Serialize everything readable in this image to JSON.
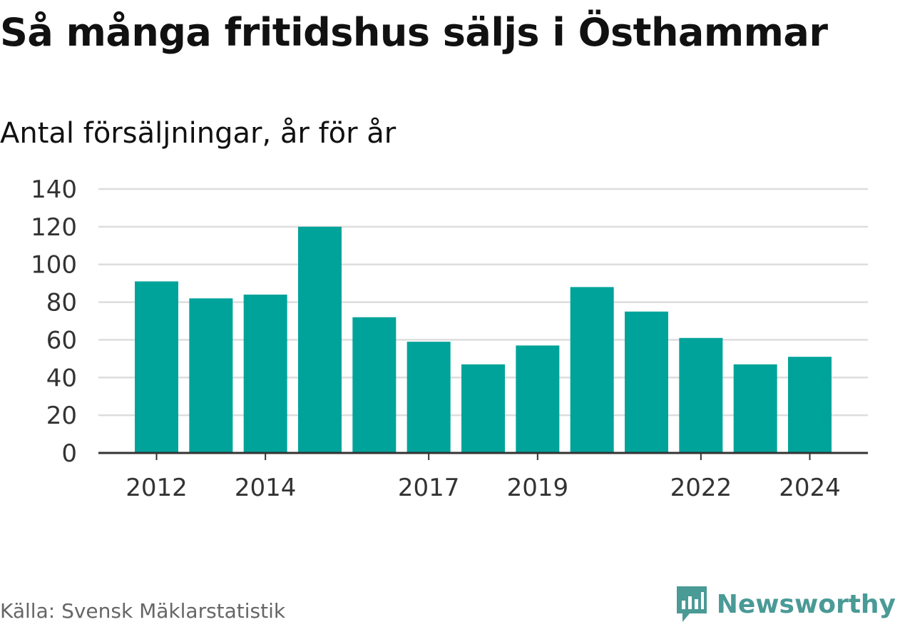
{
  "title": "Så många fritidshus säljs i Östhammar",
  "subtitle": "Antal försäljningar, år för år",
  "source": "Källa: Svensk Mäklarstatistik",
  "brand": {
    "name": "Newsworthy",
    "icon": "newsworthy-logo-icon",
    "color": "#4a9a96"
  },
  "colors": {
    "bar": "#00a39a",
    "grid": "#dddddd",
    "axis": "#333333"
  },
  "chart_data": {
    "type": "bar",
    "categories": [
      "2012",
      "2013",
      "2014",
      "2015",
      "2016",
      "2017",
      "2018",
      "2019",
      "2020",
      "2021",
      "2022",
      "2023",
      "2024"
    ],
    "values": [
      91,
      82,
      84,
      120,
      72,
      59,
      47,
      57,
      88,
      75,
      61,
      47,
      51
    ],
    "x_tick_labels": [
      "2012",
      "2014",
      "2017",
      "2019",
      "2022",
      "2024"
    ],
    "y_ticks": [
      0,
      20,
      40,
      60,
      80,
      100,
      120,
      140
    ],
    "ylim": [
      0,
      140
    ],
    "grid": true,
    "legend": "none"
  }
}
